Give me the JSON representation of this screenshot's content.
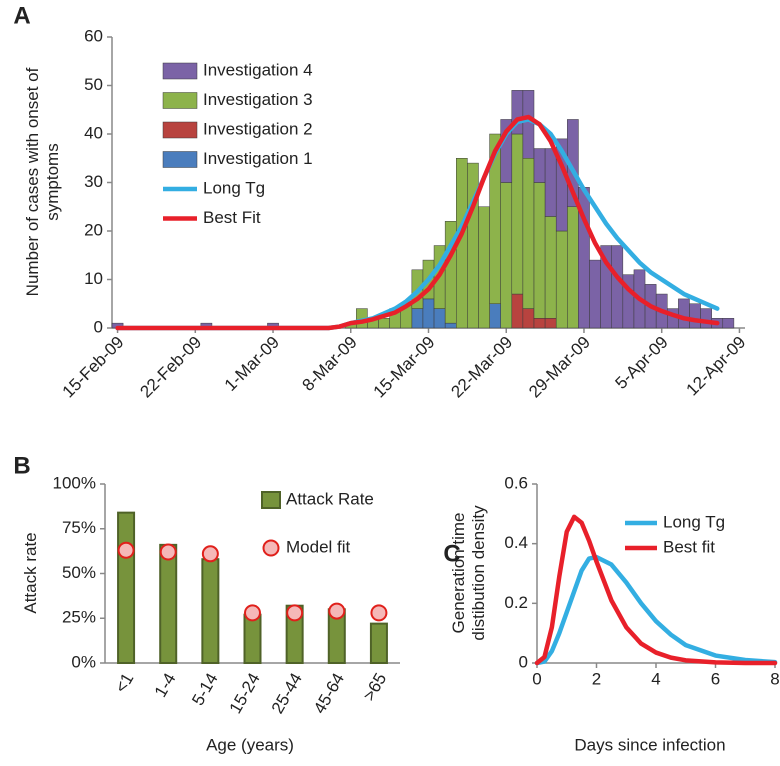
{
  "chart_data": [
    {
      "type": "combo",
      "panel_label": "A",
      "y_label": "Number of cases with onset of symptoms",
      "categories": [
        "15-Feb-09",
        null,
        null,
        null,
        null,
        null,
        null,
        "22-Feb-09",
        null,
        null,
        null,
        null,
        null,
        null,
        "1-Mar-09",
        null,
        null,
        null,
        null,
        null,
        null,
        "8-Mar-09",
        null,
        null,
        null,
        null,
        null,
        null,
        "15-Mar-09",
        null,
        null,
        null,
        null,
        null,
        null,
        "22-Mar-09",
        null,
        null,
        null,
        null,
        null,
        null,
        "29-Mar-09",
        null,
        null,
        null,
        null,
        null,
        null,
        "5-Apr-09",
        null,
        null,
        null,
        null,
        null,
        null,
        "12-Apr-09"
      ],
      "ylim": [
        0,
        60
      ],
      "yticks": [
        0,
        10,
        20,
        30,
        40,
        50,
        60
      ],
      "stacked": true,
      "series": [
        {
          "name": "Investigation 4",
          "type": "bar",
          "color": "#7b63a6",
          "values": [
            1,
            0,
            0,
            0,
            0,
            0,
            0,
            0,
            1,
            0,
            0,
            0,
            0,
            0,
            1,
            0,
            0,
            0,
            0,
            0,
            0,
            0,
            0,
            0,
            0,
            0,
            0,
            0,
            0,
            0,
            0,
            0,
            0,
            0,
            0,
            13,
            9,
            14,
            7,
            14,
            19,
            18,
            29,
            14,
            17,
            17,
            11,
            12,
            9,
            7,
            4,
            6,
            5,
            4,
            2,
            2,
            0
          ]
        },
        {
          "name": "Investigation 3",
          "type": "bar",
          "color": "#8db34b",
          "values": [
            0,
            0,
            0,
            0,
            0,
            0,
            0,
            0,
            0,
            0,
            0,
            0,
            0,
            0,
            0,
            0,
            0,
            0,
            0,
            0,
            0,
            1,
            4,
            2,
            2,
            4,
            5,
            8,
            8,
            13,
            21,
            35,
            34,
            25,
            35,
            30,
            33,
            31,
            28,
            21,
            20,
            25,
            0,
            0,
            0,
            0,
            0,
            0,
            0,
            0,
            0,
            0,
            0,
            0,
            0,
            0,
            0
          ]
        },
        {
          "name": "Investigation 2",
          "type": "bar",
          "color": "#b8433f",
          "values": [
            0,
            0,
            0,
            0,
            0,
            0,
            0,
            0,
            0,
            0,
            0,
            0,
            0,
            0,
            0,
            0,
            0,
            0,
            0,
            0,
            0,
            0,
            0,
            0,
            0,
            0,
            0,
            0,
            0,
            0,
            0,
            0,
            0,
            0,
            0,
            0,
            7,
            4,
            2,
            2,
            0,
            0,
            0,
            0,
            0,
            0,
            0,
            0,
            0,
            0,
            0,
            0,
            0,
            0,
            0,
            0,
            0
          ]
        },
        {
          "name": "Investigation 1",
          "type": "bar",
          "color": "#4a7dbd",
          "values": [
            0,
            0,
            0,
            0,
            0,
            0,
            0,
            0,
            0,
            0,
            0,
            0,
            0,
            0,
            0,
            0,
            0,
            0,
            0,
            0,
            0,
            0,
            0,
            0,
            0,
            0,
            0,
            4,
            6,
            4,
            1,
            0,
            0,
            0,
            5,
            0,
            0,
            0,
            0,
            0,
            0,
            0,
            0,
            0,
            0,
            0,
            0,
            0,
            0,
            0,
            0,
            0,
            0,
            0,
            0,
            0,
            0
          ]
        },
        {
          "name": "Long Tg",
          "type": "line",
          "color": "#33aee2",
          "values": [
            0,
            0,
            0,
            0,
            0,
            0,
            0,
            0,
            0,
            0,
            0,
            0,
            0,
            0,
            0,
            0,
            0,
            0,
            0,
            0,
            0.3,
            1,
            1.5,
            2,
            3,
            4,
            5.5,
            7.5,
            10,
            13,
            17,
            21,
            26,
            31,
            36,
            40,
            42.5,
            43,
            42,
            40,
            36.5,
            32.5,
            28.5,
            25,
            21.5,
            18.5,
            16,
            13.5,
            11.5,
            10,
            8.5,
            7,
            6,
            5,
            4,
            null,
            null
          ]
        },
        {
          "name": "Best Fit",
          "type": "line",
          "color": "#e8202a",
          "values": [
            0,
            0,
            0,
            0,
            0,
            0,
            0,
            0,
            0,
            0,
            0,
            0,
            0,
            0,
            0,
            0,
            0,
            0,
            0,
            0,
            0.3,
            1,
            1.3,
            1.8,
            2.5,
            3.2,
            4.5,
            6,
            8,
            11,
            15,
            19.5,
            25,
            31,
            36.5,
            40.5,
            43,
            43.5,
            42,
            38.5,
            33.5,
            28,
            22.5,
            17.5,
            13.5,
            10.5,
            8,
            6,
            4.5,
            3.5,
            2.7,
            2,
            1.6,
            1.3,
            1,
            null,
            null
          ]
        }
      ]
    },
    {
      "type": "combo",
      "panel_label": "B",
      "y_label": "Attack rate",
      "x_label": "Age (years)",
      "categories": [
        "<1",
        "1-4",
        "5-14",
        "15-24",
        "25-44",
        "45-64",
        ">65"
      ],
      "ylim": [
        0,
        100
      ],
      "yticks": [
        {
          "value": 0,
          "label": "0%"
        },
        {
          "value": 25,
          "label": "25%"
        },
        {
          "value": 50,
          "label": "50%"
        },
        {
          "value": 75,
          "label": "75%"
        },
        {
          "value": 100,
          "label": "100%"
        }
      ],
      "series": [
        {
          "name": "Attack Rate",
          "type": "bar",
          "color": "#77933c",
          "edgecolor": "#4f6228",
          "values": [
            84,
            66,
            58,
            27,
            32,
            30,
            22
          ]
        },
        {
          "name": "Model fit",
          "type": "scatter",
          "color": "#f5b8b8",
          "edgecolor": "#e0201b",
          "values": [
            63,
            62,
            61,
            28,
            28,
            29,
            28
          ]
        }
      ]
    },
    {
      "type": "line",
      "panel_label": "C",
      "y_label": "Generation time distibution density",
      "x_label": "Days since infection",
      "x": [
        0,
        0.25,
        0.5,
        0.75,
        1,
        1.25,
        1.5,
        1.75,
        2,
        2.5,
        3,
        3.5,
        4,
        4.5,
        5,
        6,
        7,
        8
      ],
      "xlim": [
        0,
        8
      ],
      "xticks": [
        0,
        2,
        4,
        6,
        8
      ],
      "ylim": [
        0,
        0.6
      ],
      "yticks": [
        0,
        0.2,
        0.4,
        0.6
      ],
      "series": [
        {
          "name": "Long Tg",
          "color": "#33aee2",
          "values": [
            0,
            0.005,
            0.04,
            0.1,
            0.17,
            0.24,
            0.31,
            0.35,
            0.355,
            0.33,
            0.27,
            0.2,
            0.14,
            0.095,
            0.06,
            0.025,
            0.01,
            0.003
          ]
        },
        {
          "name": "Best fit",
          "color": "#e8202a",
          "values": [
            0,
            0.02,
            0.12,
            0.29,
            0.44,
            0.49,
            0.47,
            0.41,
            0.34,
            0.21,
            0.12,
            0.065,
            0.035,
            0.018,
            0.009,
            0.002,
            0,
            0
          ]
        }
      ]
    }
  ]
}
